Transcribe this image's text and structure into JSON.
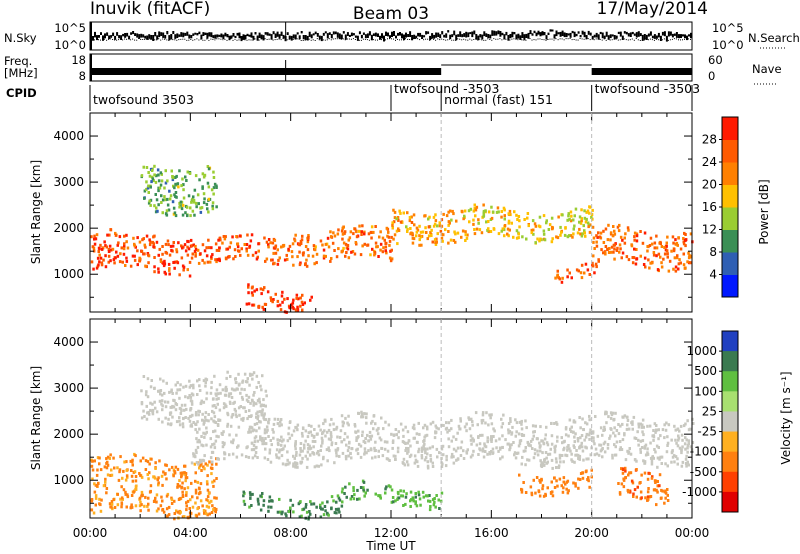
{
  "header": {
    "station": "Inuvik (fitACF)",
    "beam": "Beam 03",
    "date": "17/May/2014"
  },
  "noise_panel": {
    "left_label": "N.Sky",
    "left_top_tick": "10^5",
    "left_bottom_tick": "10^0",
    "right_label": "N.Search",
    "right_top_tick": "10^5",
    "right_bottom_tick": "10^0"
  },
  "freq_panel": {
    "left_label_1": "Freq.",
    "left_label_2": "[MHz]",
    "left_top_tick": "18",
    "left_bottom_tick": "8",
    "right_label": "Nave",
    "right_top_tick": "60",
    "right_bottom_tick": "0"
  },
  "cpid_panel": {
    "label": "CPID",
    "segments": [
      {
        "text": "twofsound 3503",
        "start_ut": 0.0
      },
      {
        "text": "twofsound -3503",
        "start_ut": 12.0
      },
      {
        "text": "normal (fast) 151",
        "start_ut": 14.0
      },
      {
        "text": "twofsound -3503",
        "start_ut": 20.0
      }
    ]
  },
  "range_axis": {
    "label": "Slant Range [km]",
    "ticks": [
      "1000",
      "2000",
      "3000",
      "4000"
    ]
  },
  "time_axis": {
    "label": "Time UT",
    "ticks": [
      "00:00",
      "04:00",
      "08:00",
      "12:00",
      "16:00",
      "20:00",
      "00:00"
    ]
  },
  "power_colorbar": {
    "label": "Power [dB]",
    "ticks": [
      "4",
      "8",
      "12",
      "16",
      "20",
      "24",
      "28"
    ],
    "colors": [
      "#0018ff",
      "#2f5fb3",
      "#3a8f55",
      "#9acd32",
      "#ffc000",
      "#ff8000",
      "#ff5a00",
      "#ff1a00"
    ]
  },
  "velocity_colorbar": {
    "label": "Velocity [m s⁻¹]",
    "ticks": [
      "1000",
      "500",
      "100",
      "25",
      "-25",
      "-100",
      "-500",
      "-1000"
    ],
    "colors": [
      "#2040c0",
      "#3a7a50",
      "#5fbf40",
      "#a8e070",
      "#c8c8c0",
      "#ffb020",
      "#ff8010",
      "#ff4000",
      "#e00000"
    ]
  },
  "chart_data": [
    {
      "type": "heatmap",
      "title": "Power",
      "xlabel": "Time UT",
      "ylabel": "Slant Range [km]",
      "xlim": [
        0,
        24
      ],
      "ylim": [
        180,
        4500
      ],
      "colorbar_label": "Power [dB]",
      "colorbar_range": [
        0,
        32
      ],
      "scatter_bands": [
        {
          "t0": 0.0,
          "t1": 4.0,
          "r0": 1100,
          "r1": 1900,
          "level": 27
        },
        {
          "t0": 4.0,
          "t1": 8.0,
          "r0": 1250,
          "r1": 1800,
          "level": 26
        },
        {
          "t0": 6.2,
          "t1": 8.8,
          "r0": 200,
          "r1": 700,
          "level": 29
        },
        {
          "t0": 8.0,
          "t1": 12.0,
          "r0": 1300,
          "r1": 2000,
          "level": 24
        },
        {
          "t0": 12.0,
          "t1": 15.0,
          "r0": 1700,
          "r1": 2450,
          "level": 20
        },
        {
          "t0": 15.0,
          "t1": 20.0,
          "r0": 1800,
          "r1": 2450,
          "level": 18
        },
        {
          "t0": 18.5,
          "t1": 20.2,
          "r0": 900,
          "r1": 1200,
          "level": 26
        },
        {
          "t0": 20.0,
          "t1": 24.0,
          "r0": 1200,
          "r1": 2000,
          "level": 25
        },
        {
          "t0": 2.0,
          "t1": 5.0,
          "r0": 2400,
          "r1": 3400,
          "level": 12
        }
      ]
    },
    {
      "type": "heatmap",
      "title": "Velocity",
      "xlabel": "Time UT",
      "ylabel": "Slant Range [km]",
      "xlim": [
        0,
        24
      ],
      "ylim": [
        180,
        4500
      ],
      "colorbar_label": "Velocity [m s⁻¹]",
      "colorbar_range": [
        -1000,
        1000
      ],
      "scatter_bands": [
        {
          "t0": 0.0,
          "t1": 5.0,
          "r0": 300,
          "r1": 1500,
          "level": -120
        },
        {
          "t0": 4.0,
          "t1": 24.0,
          "r0": 1400,
          "r1": 2400,
          "level": 0
        },
        {
          "t0": 6.0,
          "t1": 10.0,
          "r0": 300,
          "r1": 700,
          "level": 130
        },
        {
          "t0": 10.0,
          "t1": 14.0,
          "r0": 500,
          "r1": 900,
          "level": 80
        },
        {
          "t0": 17.0,
          "t1": 20.0,
          "r0": 800,
          "r1": 1200,
          "level": -300
        },
        {
          "t0": 21.0,
          "t1": 23.0,
          "r0": 600,
          "r1": 1300,
          "level": -400
        },
        {
          "t0": 2.0,
          "t1": 7.0,
          "r0": 2300,
          "r1": 3300,
          "level": 0
        }
      ]
    }
  ]
}
